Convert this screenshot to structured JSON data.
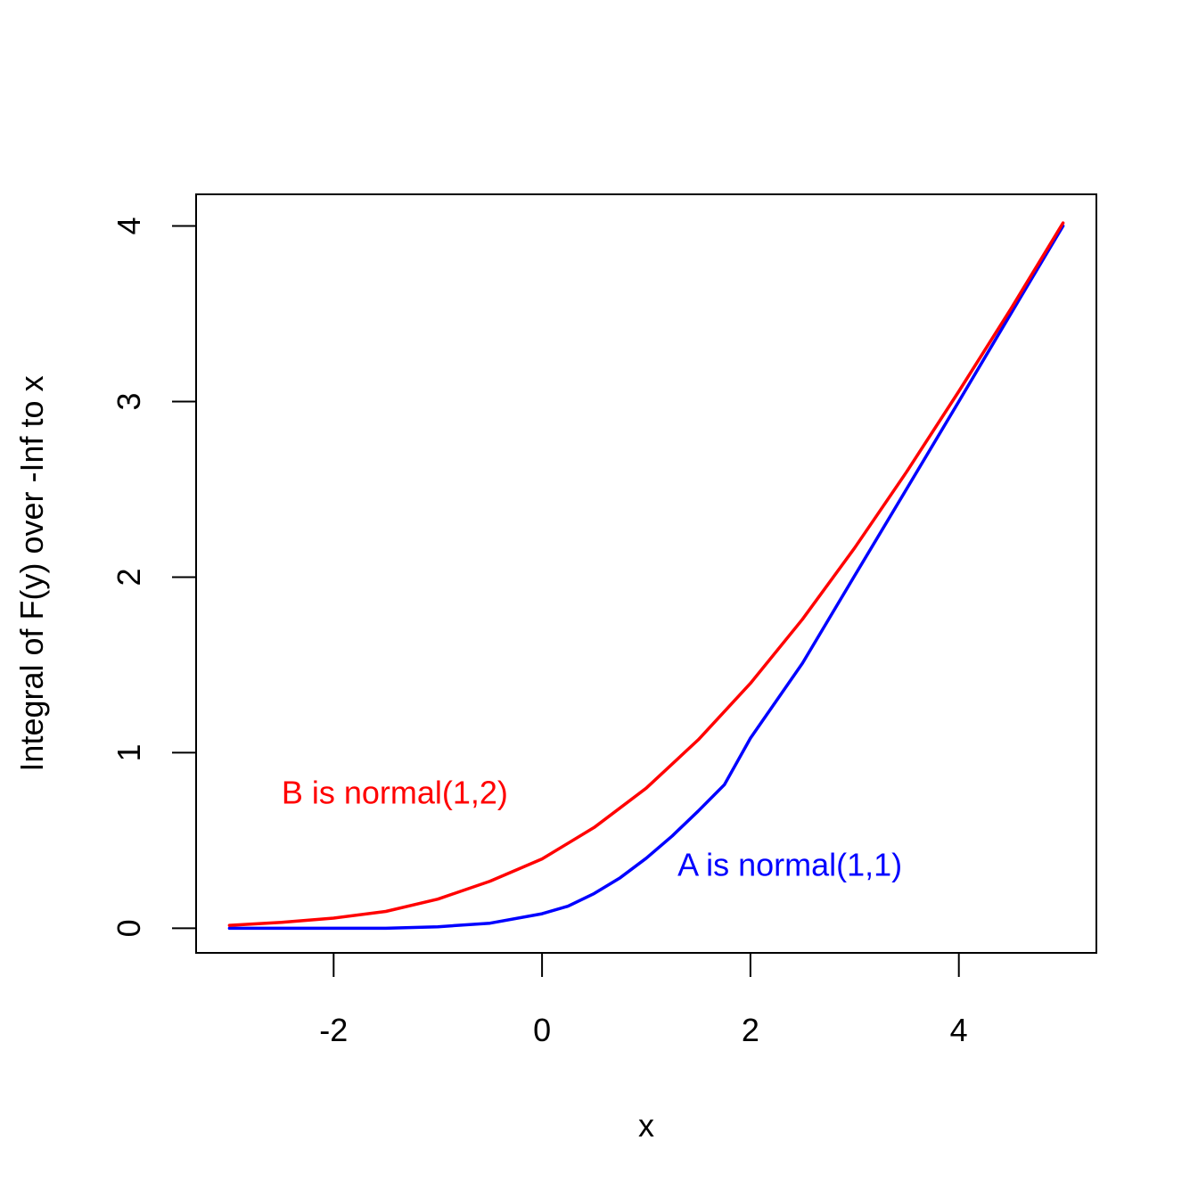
{
  "chart_data": {
    "type": "line",
    "title": "",
    "xlabel": "x",
    "ylabel": "Integral of F(y) over -Inf to x",
    "xlim": [
      -3.32,
      5.32
    ],
    "ylim": [
      -0.14,
      4.18
    ],
    "xticks": [
      -2,
      0,
      2,
      4
    ],
    "yticks": [
      0,
      1,
      2,
      3,
      4
    ],
    "xtick_labels": [
      "-2",
      "0",
      "2",
      "4"
    ],
    "ytick_labels": [
      "0",
      "1",
      "2",
      "3",
      "4"
    ],
    "grid": false,
    "legend": "none",
    "series": [
      {
        "name": "A is normal(1,1)",
        "color": "#0000ff",
        "x": [
          -3,
          -2.5,
          -2,
          -1.5,
          -1,
          -0.5,
          0,
          0.25,
          0.5,
          0.75,
          1,
          1.25,
          1.5,
          1.75,
          2,
          2.5,
          3,
          3.5,
          4,
          4.5,
          5
        ],
        "y": [
          0.0,
          0.0,
          0.0,
          0.0002,
          0.0085,
          0.029,
          0.083,
          0.126,
          0.198,
          0.288,
          0.399,
          0.526,
          0.668,
          0.818,
          1.083,
          1.51,
          2.008,
          2.503,
          3.0,
          3.501,
          4.0
        ]
      },
      {
        "name": "B is normal(1,2)",
        "color": "#ff0000",
        "x": [
          -3,
          -2.5,
          -2,
          -1.5,
          -1,
          -0.5,
          0,
          0.5,
          1,
          1.5,
          2,
          2.5,
          3,
          3.5,
          4,
          4.5,
          5
        ],
        "y": [
          0.017,
          0.034,
          0.058,
          0.096,
          0.166,
          0.268,
          0.395,
          0.574,
          0.798,
          1.074,
          1.395,
          1.76,
          2.166,
          2.6,
          3.058,
          3.528,
          4.017
        ]
      }
    ],
    "annotations": [
      {
        "text": "B is normal(1,2)",
        "x": -2.5,
        "y": 0.71,
        "color": "#ff0000"
      },
      {
        "text": "A is normal(1,1)",
        "x": 1.3,
        "y": 0.3,
        "color": "#0000ff"
      }
    ]
  }
}
